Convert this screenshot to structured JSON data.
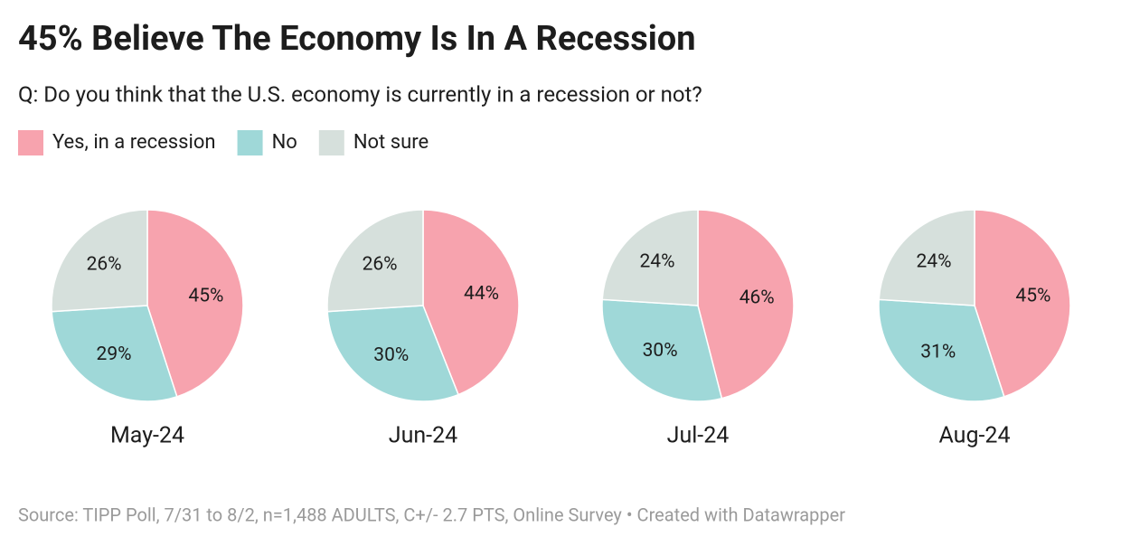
{
  "title": "45% Believe The Economy Is In A Recession",
  "subtitle": "Q: Do you think that the U.S. economy is currently in a recession or not?",
  "source": "Source: TIPP Poll, 7/31 to 8/2, n=1,488 ADULTS, C+/- 2.7 PTS, Online Survey • Created with Datawrapper",
  "legend": {
    "categories": [
      "Yes, in a recession",
      "No",
      "Not sure"
    ],
    "colors": [
      "#f7a3ae",
      "#9fd8d8",
      "#d6e0dc"
    ]
  },
  "chart_data": [
    {
      "type": "pie",
      "title": "May-24",
      "values": [
        45,
        29,
        26
      ],
      "value_labels": [
        "45%",
        "29%",
        "26%"
      ]
    },
    {
      "type": "pie",
      "title": "Jun-24",
      "values": [
        44,
        30,
        26
      ],
      "value_labels": [
        "44%",
        "30%",
        "26%"
      ]
    },
    {
      "type": "pie",
      "title": "Jul-24",
      "values": [
        46,
        30,
        24
      ],
      "value_labels": [
        "46%",
        "30%",
        "24%"
      ]
    },
    {
      "type": "pie",
      "title": "Aug-24",
      "values": [
        45,
        31,
        24
      ],
      "value_labels": [
        "45%",
        "31%",
        "24%"
      ]
    }
  ]
}
